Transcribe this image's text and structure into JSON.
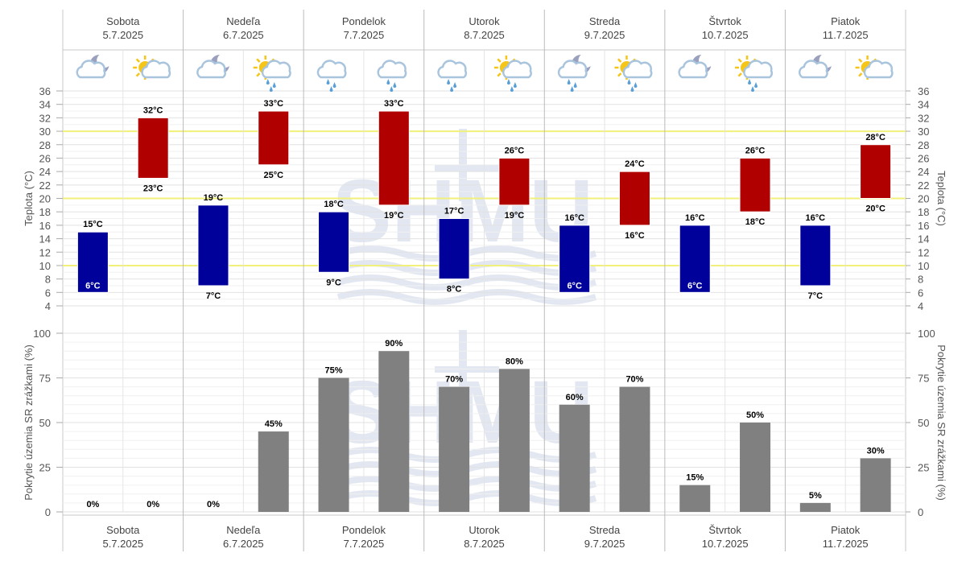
{
  "chart_data": [
    {
      "type": "bar",
      "title": "",
      "ylabel": "Teplota (°C)",
      "ylabel_right": "Teplota (°C)",
      "ylim": [
        4,
        36
      ],
      "yticks": [
        4,
        6,
        8,
        10,
        12,
        14,
        16,
        18,
        20,
        22,
        24,
        26,
        28,
        30,
        32,
        34,
        36
      ],
      "reference_lines": [
        10,
        20,
        30
      ],
      "unit": "°C",
      "series": [
        {
          "name": "night",
          "color": "#00009a",
          "min": [
            6,
            7,
            9,
            8,
            6,
            6,
            7
          ],
          "max": [
            15,
            19,
            18,
            17,
            16,
            16,
            16
          ]
        },
        {
          "name": "day",
          "color": "#b00000",
          "min": [
            23,
            25,
            19,
            19,
            16,
            18,
            20
          ],
          "max": [
            32,
            33,
            33,
            26,
            24,
            26,
            28
          ]
        }
      ]
    },
    {
      "type": "bar",
      "ylabel": "Pokrytie územia SR zrážkami (%)",
      "ylabel_right": "Pokrytie územia SR zrážkami (%)",
      "ylim": [
        0,
        100
      ],
      "yticks": [
        0,
        25,
        50,
        75,
        100
      ],
      "color": "#808080",
      "series": [
        {
          "name": "night",
          "values": [
            0,
            0,
            75,
            70,
            60,
            15,
            5
          ]
        },
        {
          "name": "day",
          "values": [
            0,
            45,
            90,
            80,
            70,
            50,
            30
          ]
        }
      ]
    }
  ],
  "days": [
    {
      "name": "Sobota",
      "date": "5.7.2025",
      "icons": [
        "cloud-moon-icon",
        "sun-cloud-icon"
      ]
    },
    {
      "name": "Nedeľa",
      "date": "6.7.2025",
      "icons": [
        "cloud-moon-icon",
        "sun-cloud-rain-icon"
      ]
    },
    {
      "name": "Pondelok",
      "date": "7.7.2025",
      "icons": [
        "cloud-rain-icon",
        "cloud-rain-icon"
      ]
    },
    {
      "name": "Utorok",
      "date": "8.7.2025",
      "icons": [
        "cloud-rain-icon",
        "sun-cloud-rain-icon"
      ]
    },
    {
      "name": "Streda",
      "date": "9.7.2025",
      "icons": [
        "cloud-moon-rain-icon",
        "sun-cloud-rain-icon"
      ]
    },
    {
      "name": "Štvrtok",
      "date": "10.7.2025",
      "icons": [
        "cloud-moon-icon",
        "sun-cloud-rain-icon"
      ]
    },
    {
      "name": "Piatok",
      "date": "11.7.2025",
      "icons": [
        "cloud-moon-icon",
        "sun-cloud-icon"
      ]
    }
  ]
}
